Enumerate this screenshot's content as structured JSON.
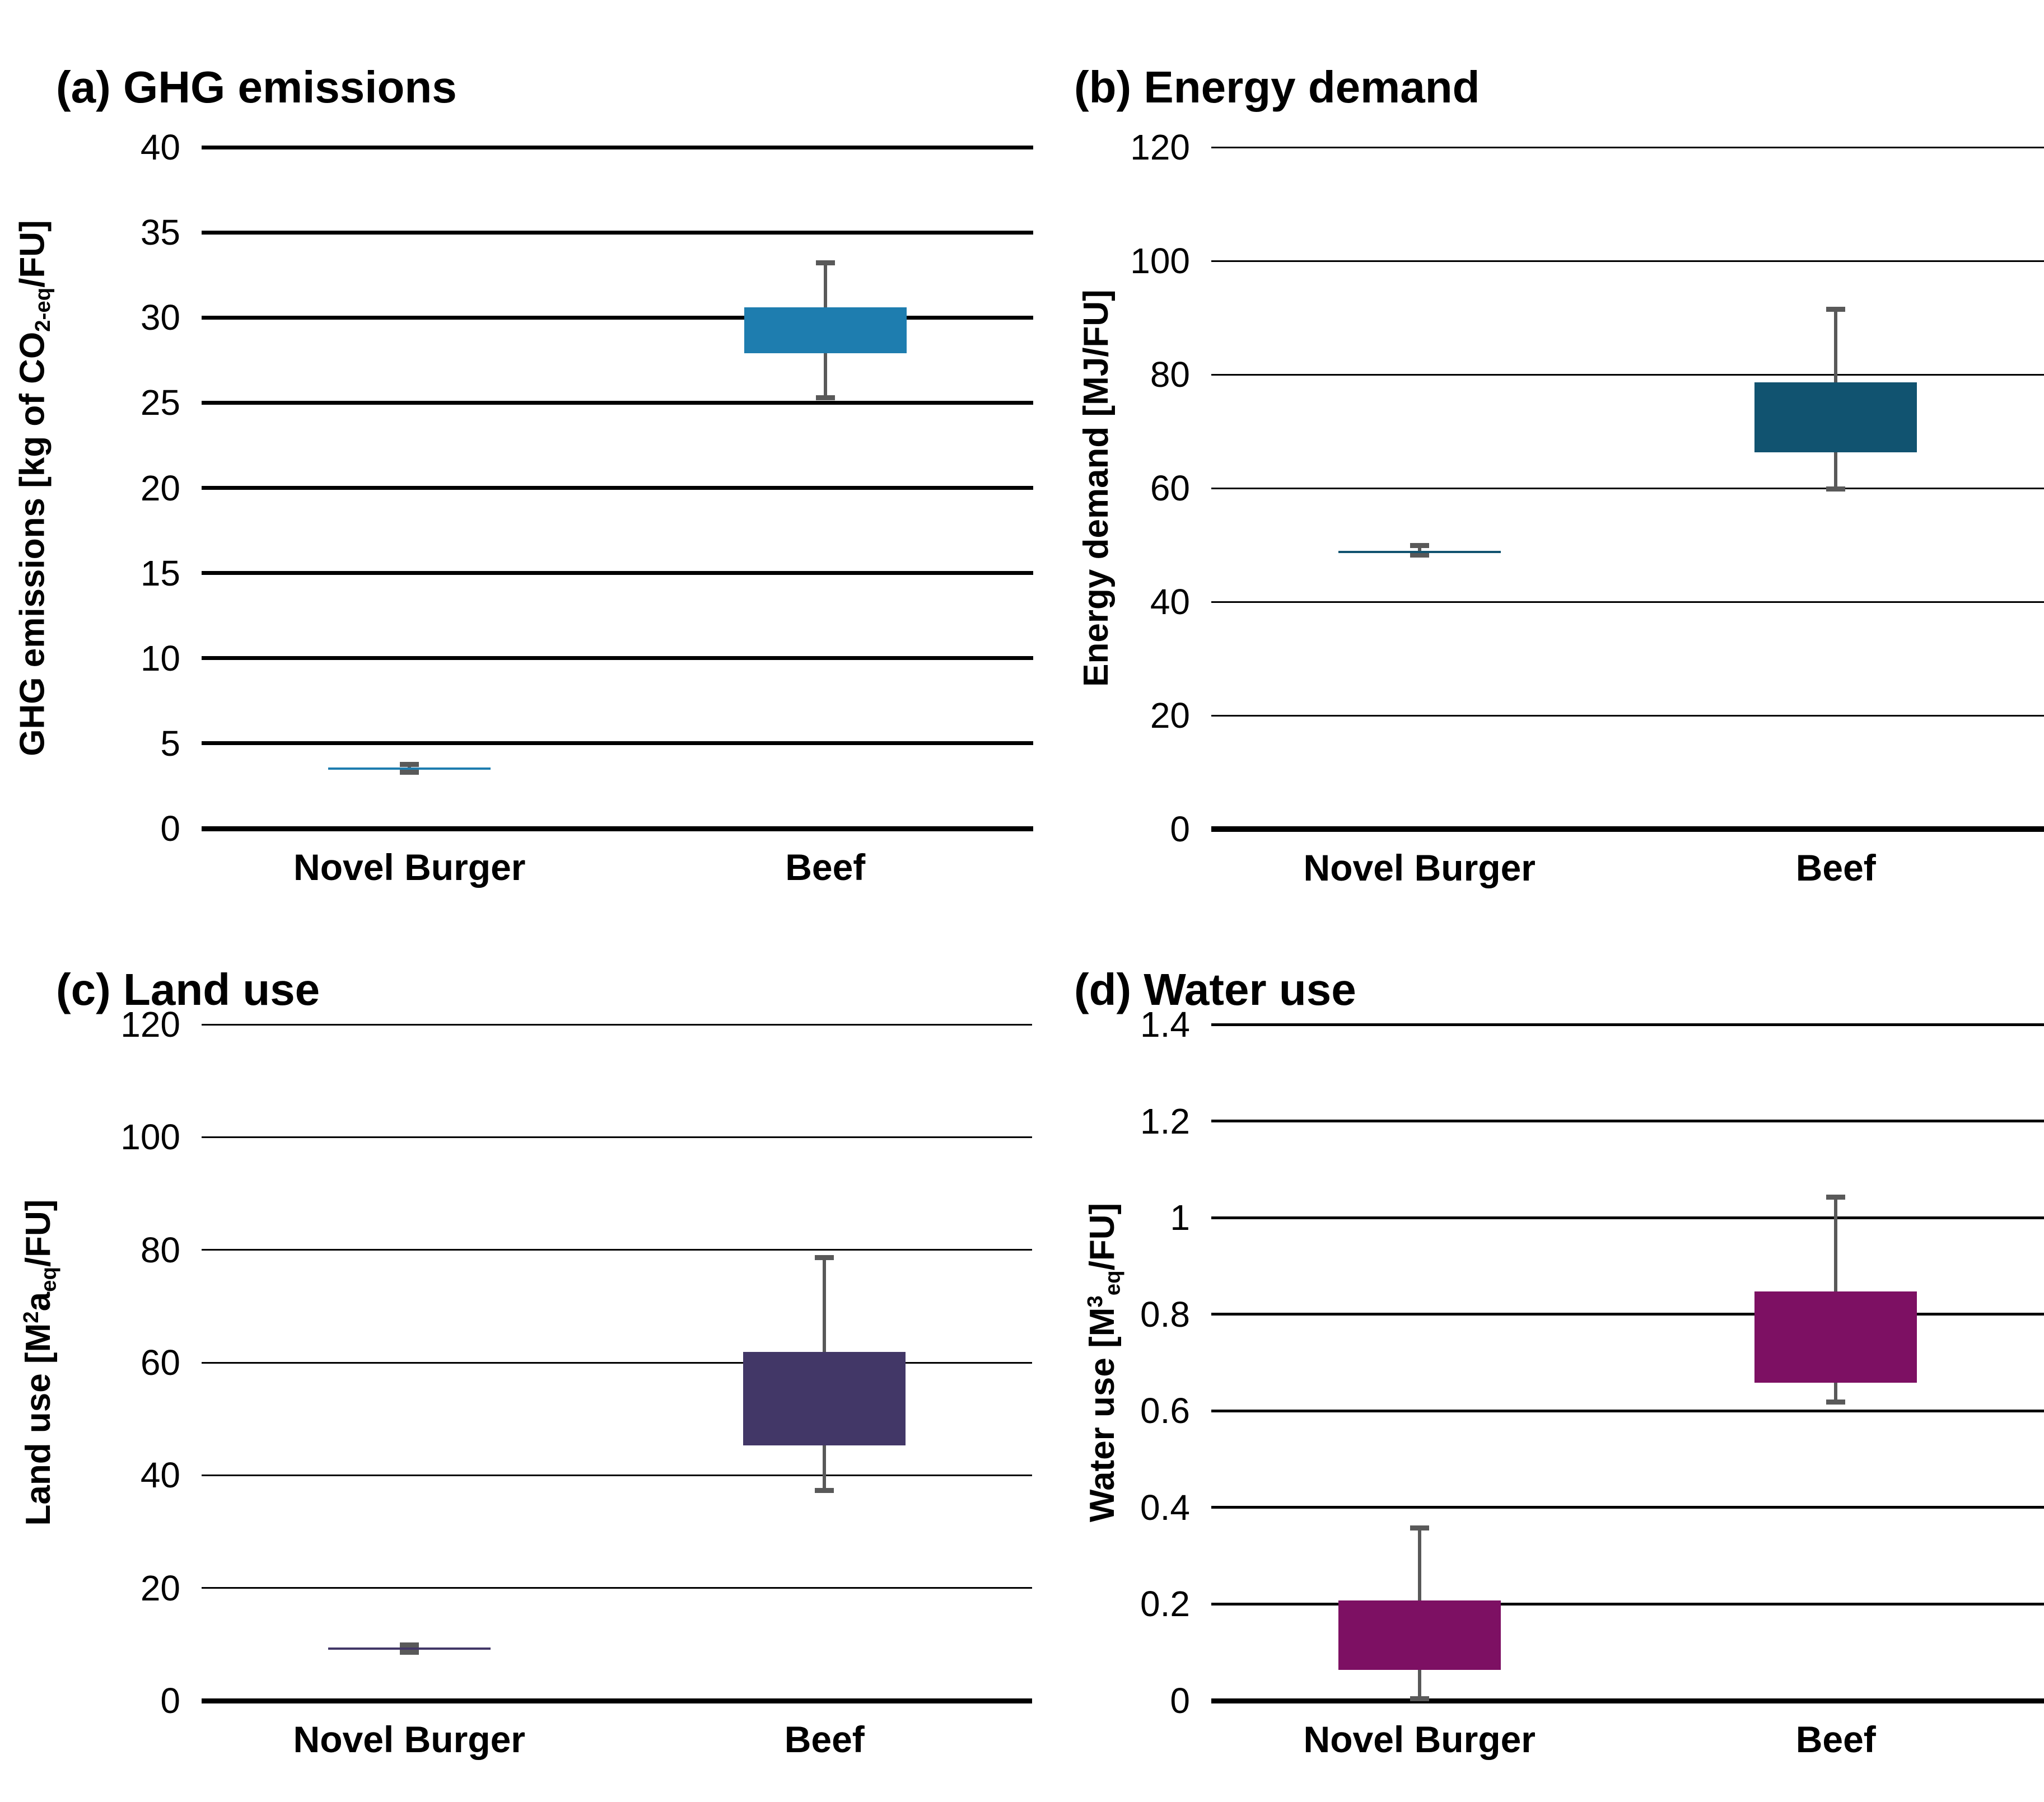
{
  "figure": {
    "background": "#ffffff",
    "whisker_color": "#595959",
    "gridline_color": "#000000",
    "categories": [
      "Novel Burger",
      "Beef"
    ]
  },
  "chart_data": [
    {
      "id": "a",
      "type": "box",
      "title": "(a) GHG emissions",
      "ylabel_text": "GHG emissions [kg of CO2-eq/FU]",
      "ylabel_parts": [
        {
          "t": "GHG emissions [kg of CO",
          "s": ""
        },
        {
          "t": "2-eq",
          "s": "sb"
        },
        {
          "t": "/FU]",
          "s": ""
        }
      ],
      "ylim": [
        0,
        40
      ],
      "grid": "on",
      "yticks": [
        {
          "v": 40,
          "label": "40"
        },
        {
          "v": 35,
          "label": "35"
        },
        {
          "v": 30,
          "label": "30"
        },
        {
          "v": 25,
          "label": "25"
        },
        {
          "v": 20,
          "label": "20"
        },
        {
          "v": 15,
          "label": "15"
        },
        {
          "v": 10,
          "label": "10"
        },
        {
          "v": 5,
          "label": "5"
        },
        {
          "v": 0,
          "label": "0"
        }
      ],
      "categories": [
        "Novel Burger",
        "Beef"
      ],
      "box_color": "#1E7DAF",
      "series": [
        {
          "category": "Novel Burger",
          "whisker_low": 3.3,
          "q1": 3.44,
          "q3": 3.58,
          "whisker_high": 3.77
        },
        {
          "category": "Beef",
          "whisker_low": 25.3,
          "q1": 27.9,
          "q3": 30.6,
          "whisker_high": 33.2
        }
      ]
    },
    {
      "id": "b",
      "type": "box",
      "title": "(b) Energy demand",
      "ylabel_text": "Energy demand [MJ/FU]",
      "ylabel_parts": [
        {
          "t": "Energy demand [MJ/FU]",
          "s": ""
        }
      ],
      "ylim": [
        0,
        120
      ],
      "grid": "on",
      "yticks": [
        {
          "v": 120,
          "label": "120"
        },
        {
          "v": 100,
          "label": "100"
        },
        {
          "v": 80,
          "label": "80"
        },
        {
          "v": 60,
          "label": "60"
        },
        {
          "v": 40,
          "label": "40"
        },
        {
          "v": 20,
          "label": "20"
        },
        {
          "v": 0,
          "label": "0"
        }
      ],
      "categories": [
        "Novel Burger",
        "Beef"
      ],
      "box_color": "#115370",
      "series": [
        {
          "category": "Novel Burger",
          "whisker_low": 48.2,
          "q1": 48.55,
          "q3": 48.95,
          "whisker_high": 49.9
        },
        {
          "category": "Beef",
          "whisker_low": 59.9,
          "q1": 66.3,
          "q3": 78.6,
          "whisker_high": 91.5
        }
      ]
    },
    {
      "id": "c",
      "type": "box",
      "title": "(c) Land use",
      "ylabel_text": "Land use [M2a-eq/FU]",
      "ylabel_parts": [
        {
          "t": "Land use [M",
          "s": ""
        },
        {
          "t": "2",
          "s": "sp"
        },
        {
          "t": "a",
          "s": ""
        },
        {
          "t": "eq",
          "s": "sb"
        },
        {
          "t": "/FU]",
          "s": ""
        }
      ],
      "ylim": [
        0,
        120
      ],
      "grid": "on",
      "yticks": [
        {
          "v": 120,
          "label": "120"
        },
        {
          "v": 100,
          "label": "100"
        },
        {
          "v": 80,
          "label": "80"
        },
        {
          "v": 60,
          "label": "60"
        },
        {
          "v": 40,
          "label": "40"
        },
        {
          "v": 20,
          "label": "20"
        },
        {
          "v": 0,
          "label": "0"
        }
      ],
      "categories": [
        "Novel Burger",
        "Beef"
      ],
      "box_color": "#423767",
      "series": [
        {
          "category": "Novel Burger",
          "whisker_low": 8.6,
          "q1": 9.05,
          "q3": 9.4,
          "whisker_high": 9.9
        },
        {
          "category": "Beef",
          "whisker_low": 37.3,
          "q1": 45.3,
          "q3": 61.9,
          "whisker_high": 78.6
        }
      ]
    },
    {
      "id": "d",
      "type": "box",
      "title": "(d) Water use",
      "ylabel_text": "Water use [M3 eq/FU]",
      "ylabel_parts": [
        {
          "t": "Water use [M",
          "s": ""
        },
        {
          "t": "3",
          "s": "sp"
        },
        {
          "t": "eq",
          "s": "sb"
        },
        {
          "t": "/FU]",
          "s": ""
        }
      ],
      "ylim": [
        0,
        1.4
      ],
      "grid": "on",
      "yticks": [
        {
          "v": 1.4,
          "label": "1.4"
        },
        {
          "v": 1.2,
          "label": "1.2"
        },
        {
          "v": 1,
          "label": "1"
        },
        {
          "v": 0.8,
          "label": "0.8"
        },
        {
          "v": 0.6,
          "label": "0.6"
        },
        {
          "v": 0.4,
          "label": "0.4"
        },
        {
          "v": 0.2,
          "label": "0.2"
        },
        {
          "v": 0,
          "label": "0"
        }
      ],
      "categories": [
        "Novel Burger",
        "Beef"
      ],
      "box_color": "#7D1063",
      "series": [
        {
          "category": "Novel Burger",
          "whisker_low": 0.004,
          "q1": 0.064,
          "q3": 0.208,
          "whisker_high": 0.357
        },
        {
          "category": "Beef",
          "whisker_low": 0.618,
          "q1": 0.658,
          "q3": 0.847,
          "whisker_high": 1.042
        }
      ]
    }
  ]
}
